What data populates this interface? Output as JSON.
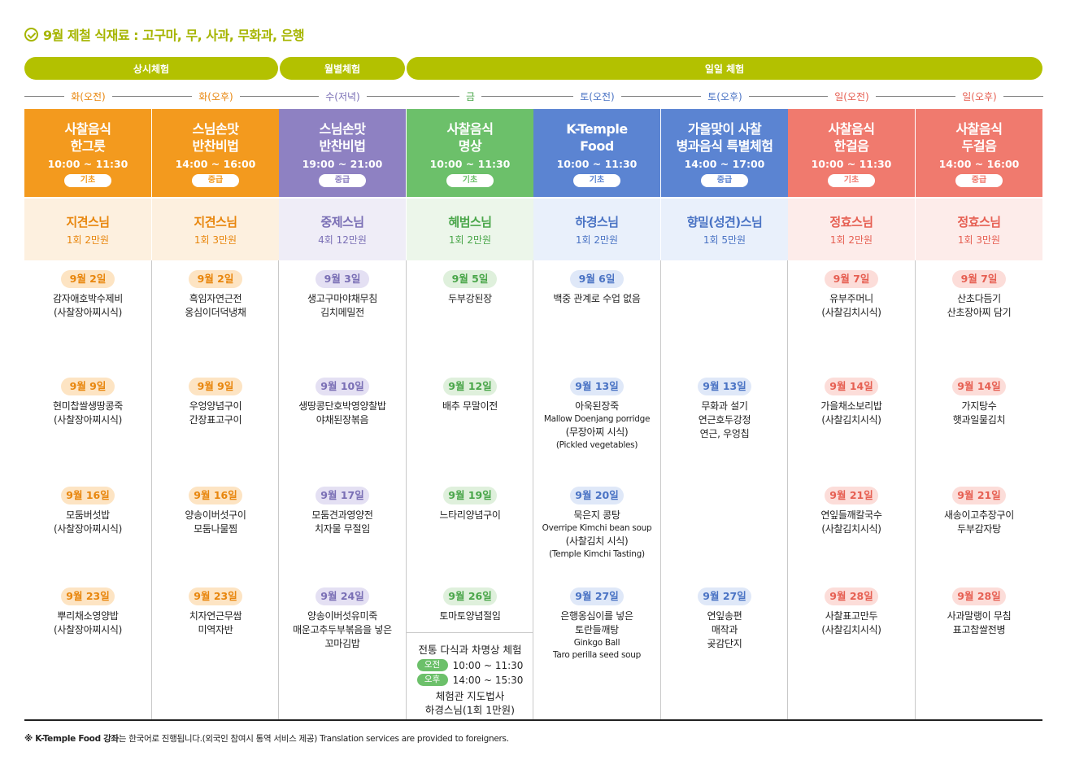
{
  "title": "9월 제철 식재료 : 고구마, 무, 사과, 무화과, 은행",
  "colors": {
    "orange": "#f39a1e",
    "purple": "#8e81c2",
    "green": "#6cc06a",
    "blue": "#5b84d2",
    "red": "#f07a6e",
    "group_bar": "#b3c100",
    "title_green": "#a6b500"
  },
  "groups": [
    "상시체험",
    "월별체험",
    "일일 체험"
  ],
  "columns": [
    {
      "day": "화(오전)",
      "title": "사찰음식\n한그릇",
      "time": "10:00 ~ 11:30",
      "level": "기초",
      "teacher": "지견스님",
      "fee": "1회 2만원",
      "sessions": [
        {
          "date": "9월 2일",
          "menu": "감자애호박수제비\n(사찰장아찌시식)"
        },
        {
          "date": "9월 9일",
          "menu": "현미찹쌀생땅콩죽\n(사찰장아찌시식)"
        },
        {
          "date": "9월 16일",
          "menu": "모둠버섯밥\n(사찰장아찌시식)"
        },
        {
          "date": "9월 23일",
          "menu": "뿌리채소영양밥\n(사찰장아찌시식)"
        }
      ]
    },
    {
      "day": "화(오후)",
      "title": "스님손맛\n반찬비법",
      "time": "14:00 ~ 16:00",
      "level": "중급",
      "teacher": "지견스님",
      "fee": "1회 3만원",
      "sessions": [
        {
          "date": "9월 2일",
          "menu": "흑임자연근전\n옹심이더덕냉채"
        },
        {
          "date": "9월 9일",
          "menu": "우엉양념구이\n간장표고구이"
        },
        {
          "date": "9월 16일",
          "menu": "양송이버섯구이\n모둠나물찜"
        },
        {
          "date": "9월 23일",
          "menu": "치자연근무쌈\n미역자반"
        }
      ]
    },
    {
      "day": "수(저녁)",
      "title": "스님손맛\n반찬비법",
      "time": "19:00 ~ 21:00",
      "level": "중급",
      "teacher": "중제스님",
      "fee": "4회 12만원",
      "sessions": [
        {
          "date": "9월 3일",
          "menu": "생고구마야채무침\n김치메밀전"
        },
        {
          "date": "9월 10일",
          "menu": "생땅콩단호박영양찰밥\n야채된장볶음"
        },
        {
          "date": "9월 17일",
          "menu": "모둠견과영양전\n치자물 무절임"
        },
        {
          "date": "9월 24일",
          "menu": "양송이버섯유미죽\n매운고추두부볶음을 넣은\n꼬마김밥"
        }
      ]
    },
    {
      "day": "금",
      "title": "사찰음식\n명상",
      "time": "10:00 ~ 11:30",
      "level": "기초",
      "teacher": "혜범스님",
      "fee": "1회 2만원",
      "sessions": [
        {
          "date": "9월 5일",
          "menu": "두부강된장"
        },
        {
          "date": "9월 12일",
          "menu": "배추 무말이전"
        },
        {
          "date": "9월 19일",
          "menu": "느타리양념구이"
        },
        {
          "date": "9월 26일",
          "menu": "토마토양념절임"
        }
      ],
      "tea": {
        "title": "전통 다식과 차명상 체험",
        "am_label": "오전",
        "am_time": "10:00 ~ 11:30",
        "pm_label": "오후",
        "pm_time": "14:00 ~ 15:30",
        "place": "체험관 지도법사\n하경스님(1회 1만원)"
      }
    },
    {
      "day": "토(오전)",
      "title": "K-Temple\nFood",
      "time": "10:00 ~ 11:30",
      "level": "기초",
      "teacher": "하경스님",
      "fee": "1회 2만원",
      "sessions": [
        {
          "date": "9월 6일",
          "menu": "백중 관계로 수업 없음",
          "en": ""
        },
        {
          "date": "9월 13일",
          "menu": "아욱된장죽",
          "en": "Mallow Doenjang porridge",
          "menu2": "(무장아찌 시식)",
          "en2": "(Pickled vegetables)"
        },
        {
          "date": "9월 20일",
          "menu": "묵은지 콩탕",
          "en": "Overripe Kimchi bean soup",
          "menu2": "(사찰김치 시식)",
          "en2": "(Temple Kimchi Tasting)"
        },
        {
          "date": "9월 27일",
          "menu": "은행옹심이를 넣은\n토란들깨탕",
          "en": "Ginkgo Ball\nTaro perilla seed soup"
        }
      ]
    },
    {
      "day": "토(오후)",
      "title": "가을맞이 사찰\n병과음식 특별체험",
      "time": "14:00 ~ 17:00",
      "level": "중급",
      "teacher": "향밀(성견)스님",
      "fee": "1회 5만원",
      "sessions": [
        {
          "date": "9월 13일",
          "menu": "무화과 설기\n연근호두강정\n연근, 우엉칩"
        },
        {
          "date": "9월 27일",
          "menu": "연잎송편\n매작과\n곶감단지"
        }
      ]
    },
    {
      "day": "일(오전)",
      "title": "사찰음식\n한걸음",
      "time": "10:00 ~ 11:30",
      "level": "기초",
      "teacher": "정효스님",
      "fee": "1회 2만원",
      "sessions": [
        {
          "date": "9월 7일",
          "menu": "유부주머니\n(사찰김치시식)"
        },
        {
          "date": "9월 14일",
          "menu": "가을채소보리밥\n(사찰김치시식)"
        },
        {
          "date": "9월 21일",
          "menu": "연잎들깨칼국수\n(사찰김치시식)"
        },
        {
          "date": "9월 28일",
          "menu": "사찰표고만두\n(사찰김치시식)"
        }
      ]
    },
    {
      "day": "일(오후)",
      "title": "사찰음식\n두걸음",
      "time": "14:00 ~ 16:00",
      "level": "중급",
      "teacher": "정효스님",
      "fee": "1회 3만원",
      "sessions": [
        {
          "date": "9월 7일",
          "menu": "산초다듬기\n산초장아찌 담기"
        },
        {
          "date": "9월 14일",
          "menu": "가지탕수\n햇과일물김치"
        },
        {
          "date": "9월 21일",
          "menu": "새송이고추장구이\n두부감자탕"
        },
        {
          "date": "9월 28일",
          "menu": "사과말랭이 무침\n표고찹쌀전병"
        }
      ]
    }
  ],
  "footnote_bold": "※ K-Temple Food 강좌",
  "footnote_rest": "는 한국어로 진행됩니다.(외국인 참여시 통역 서비스 제공) Translation services are provided to foreigners."
}
